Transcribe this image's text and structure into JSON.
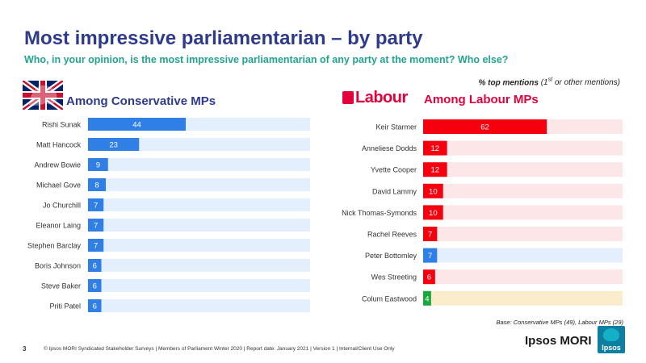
{
  "title": "Most impressive parliamentarian – by party",
  "subtitle": "Who, in your opinion, is the most impressive parliamentarian of any party at the moment?  Who else?",
  "legend_note": {
    "prefix": "% top mentions",
    "paren_open": " (1",
    "sup": "st",
    "paren_rest": " or other mentions)"
  },
  "logos": {
    "conservative": "conservative-tree-logo",
    "labour_word": "Labour"
  },
  "chart_data": [
    {
      "type": "bar",
      "orientation": "horizontal",
      "title": "Among Conservative MPs",
      "categories": [
        "Rishi Sunak",
        "Matt Hancock",
        "Andrew Bowie",
        "Michael Gove",
        "Jo Churchill",
        "Eleanor Laing",
        "Stephen Barclay",
        "Boris Johnson",
        "Steve Baker",
        "Priti Patel"
      ],
      "values": [
        44,
        23,
        9,
        8,
        7,
        7,
        7,
        6,
        6,
        6
      ],
      "bar_colors": [
        "#2f7fe6",
        "#2f7fe6",
        "#2f7fe6",
        "#2f7fe6",
        "#2f7fe6",
        "#2f7fe6",
        "#2f7fe6",
        "#2f7fe6",
        "#2f7fe6",
        "#2f7fe6"
      ],
      "track_color": "#e3effc",
      "xlim": [
        0,
        100
      ],
      "grid": false
    },
    {
      "type": "bar",
      "orientation": "horizontal",
      "title": "Among Labour MPs",
      "categories": [
        "Keir Starmer",
        "Anneliese Dodds",
        "Yvette Cooper",
        "David Lammy",
        "Nick Thomas-Symonds",
        "Rachel Reeves",
        "Peter Bottomley",
        "Wes Streeting",
        "Colum Eastwood"
      ],
      "values": [
        62,
        12,
        12,
        10,
        10,
        7,
        7,
        6,
        4
      ],
      "bar_colors": [
        "#f5000f",
        "#f5000f",
        "#f5000f",
        "#f5000f",
        "#f5000f",
        "#f5000f",
        "#2f7fe6",
        "#f5000f",
        "#1aa83c"
      ],
      "track_colors": [
        "#fce6e8",
        "#fce6e8",
        "#fce6e8",
        "#fce6e8",
        "#fce6e8",
        "#fce6e8",
        "#e3effc",
        "#fce6e8",
        "#fbeccb"
      ],
      "xlim": [
        0,
        100
      ],
      "grid": false
    }
  ],
  "base_note": "Base: Conservative MPs (49), Labour MPs (29)",
  "footer": {
    "page": "3",
    "text": "© Ipsos MORI  Syndicated Stakeholder  Surveys  | Members of Parliament  Winter 2020  | Report  date: January  2021 | Version  1 | Internal/Client  Use Only"
  },
  "brand": {
    "wordmark": "Ipsos MORI",
    "badge": "Ipsos"
  }
}
